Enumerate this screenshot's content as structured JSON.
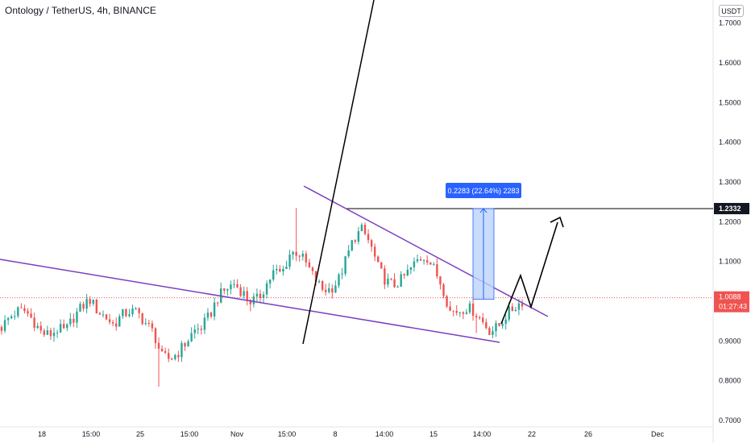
{
  "header": {
    "title": "Ontology / TetherUS, 4h, BINANCE",
    "currency": "USDT"
  },
  "colors": {
    "up": "#26a69a",
    "down": "#ef5350",
    "trendline": "#7b3fbf",
    "measure_fill": "#bbd3f7",
    "measure_label_bg": "#2962ff",
    "last_price_bg": "#ef5350",
    "drawing": "#000000"
  },
  "chart_data": {
    "type": "candlestick",
    "ylim": [
      0.7,
      1.75
    ],
    "y_ticks": [
      {
        "value": 1.7,
        "label": "1.7000"
      },
      {
        "value": 1.6,
        "label": "1.6000"
      },
      {
        "value": 1.5,
        "label": "1.5000"
      },
      {
        "value": 1.4,
        "label": "1.4000"
      },
      {
        "value": 1.3,
        "label": "1.3000"
      },
      {
        "value": 1.2,
        "label": "1.2000"
      },
      {
        "value": 1.1,
        "label": "1.1000"
      },
      {
        "value": 0.9,
        "label": "0.9000"
      },
      {
        "value": 0.8,
        "label": "0.8000"
      },
      {
        "value": 0.7,
        "label": "0.7000"
      }
    ],
    "x_ticks": [
      "18",
      "15:00",
      "25",
      "15:00",
      "Nov",
      "15:00",
      "8",
      "14:00",
      "15",
      "14:00",
      "22",
      "26",
      "Dec"
    ],
    "last_price": {
      "value": 1.0088,
      "label": "1.0088",
      "countdown": "01:27:43"
    },
    "horizontal_level": {
      "value": 1.2332,
      "label": "1.2332"
    },
    "measure": {
      "from": 1.005,
      "to": 1.2332,
      "label": "0.2283 (22.64%) 2283"
    },
    "price_path": [
      0.935,
      0.96,
      0.975,
      0.975,
      0.95,
      0.92,
      0.915,
      0.93,
      0.925,
      0.96,
      0.985,
      1.005,
      0.975,
      0.96,
      0.94,
      0.965,
      0.975,
      0.97,
      0.945,
      0.92,
      0.86,
      0.855,
      0.87,
      0.895,
      0.925,
      0.935,
      0.965,
      1.01,
      1.03,
      1.045,
      1.025,
      1.0,
      1.005,
      1.04,
      1.075,
      1.07,
      1.12,
      1.125,
      1.095,
      1.06,
      1.03,
      1.03,
      1.05,
      1.105,
      1.16,
      1.18,
      1.145,
      1.085,
      1.05,
      1.04,
      1.055,
      1.08,
      1.105,
      1.115,
      1.08,
      1.04,
      0.975,
      0.975,
      0.985,
      0.975,
      0.95,
      0.925,
      0.935,
      0.965,
      0.985,
      1.0
    ]
  }
}
